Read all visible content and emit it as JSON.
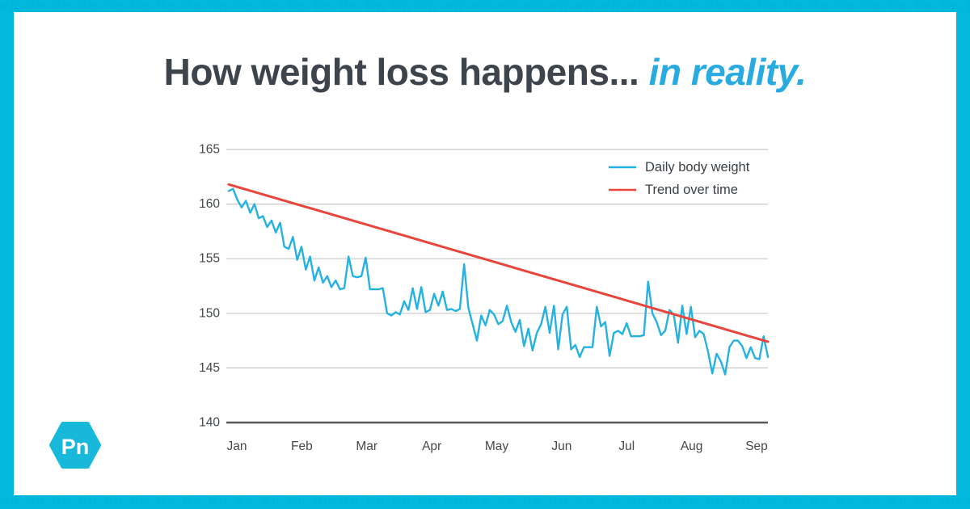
{
  "page": {
    "title_main": "How weight loss happens... ",
    "title_accent": "in reality."
  },
  "brand": {
    "logo_text": "Pn"
  },
  "watermark": {
    "glyph": "Pn "
  },
  "colors": {
    "border_cyan": "#00b9dc",
    "title_dark": "#3d444b",
    "title_accent": "#29abe2",
    "daily_line": "#25b2e2",
    "trend_line": "#e8463d",
    "gridline": "#c8c8c8",
    "axis_line": "#57585a",
    "tick_text": "#44484b",
    "logo_cyan": "#17b8d9"
  },
  "chart_data": {
    "type": "line",
    "title": "",
    "xlabel": "",
    "ylabel": "",
    "x_axis": {
      "tick_labels": [
        "Jan",
        "Feb",
        "Mar",
        "Apr",
        "May",
        "Jun",
        "Jul",
        "Aug",
        "Sep"
      ]
    },
    "y_axis": {
      "tick_labels": [
        "165",
        "160",
        "155",
        "150",
        "145",
        "140"
      ],
      "tick_values": [
        165,
        160,
        155,
        150,
        145,
        140
      ],
      "range": [
        140,
        165
      ]
    },
    "legend": {
      "position": "top-right-inside",
      "frame": false
    },
    "grid": true,
    "series": [
      {
        "name": "Daily body weight",
        "color": "#25b2e2",
        "x_start_day": 0,
        "x_step_days": 2,
        "values": [
          161.2,
          161.4,
          160.4,
          159.7,
          160.3,
          159.2,
          160.0,
          158.7,
          158.9,
          157.9,
          158.5,
          157.4,
          158.3,
          156.1,
          155.9,
          157.0,
          154.9,
          156.1,
          154.0,
          155.2,
          153.0,
          154.2,
          152.8,
          153.4,
          152.4,
          153.0,
          152.2,
          152.3,
          155.2,
          153.4,
          153.3,
          153.4,
          155.1,
          152.2,
          152.2,
          152.2,
          152.3,
          150.0,
          149.8,
          150.1,
          149.9,
          151.1,
          150.3,
          152.3,
          150.4,
          152.4,
          150.1,
          150.3,
          151.8,
          150.7,
          152.0,
          150.3,
          150.4,
          150.2,
          150.4,
          154.5,
          150.5,
          149.0,
          147.5,
          149.8,
          148.9,
          150.3,
          149.9,
          149.0,
          149.3,
          150.7,
          149.2,
          148.3,
          149.4,
          147.0,
          148.6,
          146.6,
          148.2,
          149.0,
          150.6,
          148.2,
          150.7,
          146.7,
          149.9,
          150.6,
          146.7,
          147.1,
          146.0,
          146.9,
          146.9,
          146.9,
          150.6,
          148.8,
          149.2,
          146.1,
          148.2,
          148.4,
          148.1,
          149.1,
          147.9,
          147.9,
          147.9,
          148.0,
          152.9,
          150.0,
          149.2,
          148.0,
          148.4,
          150.3,
          149.9,
          147.3,
          150.7,
          148.1,
          150.6,
          147.8,
          148.4,
          148.1,
          146.5,
          144.5,
          146.3,
          145.6,
          144.4,
          146.9,
          147.5,
          147.5,
          147.0,
          145.9,
          146.9,
          145.9,
          145.8,
          147.9,
          146.0
        ]
      },
      {
        "name": "Trend over time",
        "color": "#e8463d",
        "x_days": [
          0,
          252
        ],
        "values": [
          161.8,
          147.4
        ]
      }
    ]
  }
}
